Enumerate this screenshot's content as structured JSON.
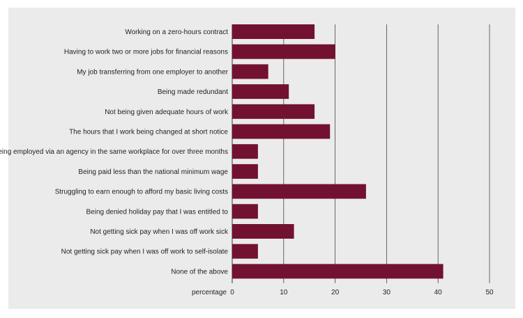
{
  "chart_data": {
    "type": "bar",
    "orientation": "horizontal",
    "title": "",
    "xlabel": "percentage",
    "ylabel": "",
    "xlim": [
      0,
      50
    ],
    "xticks": [
      0,
      10,
      20,
      30,
      40,
      50
    ],
    "grid": true,
    "legend": "none",
    "bar_color": "#731130",
    "background_color": "#ebebeb",
    "categories": [
      "Working on a zero-hours contract",
      "Having to work two or more jobs for financial reasons",
      "My job transferring from one employer to another",
      "Being made redundant",
      "Not being given adequate hours of work",
      "The hours that I work being changed at short notice",
      "Being employed via an agency in the same workplace for over three months",
      "Being paid less than the national minimum wage",
      "Struggling to earn enough to afford my basic living costs",
      "Being denied holiday pay that I was entitled to",
      "Not getting sick pay when I was off work sick",
      "Not getting sick pay when I was off work to self-isolate",
      "None of the above"
    ],
    "values": [
      16,
      20,
      7,
      11,
      16,
      19,
      5,
      5,
      26,
      5,
      12,
      5,
      41
    ]
  }
}
